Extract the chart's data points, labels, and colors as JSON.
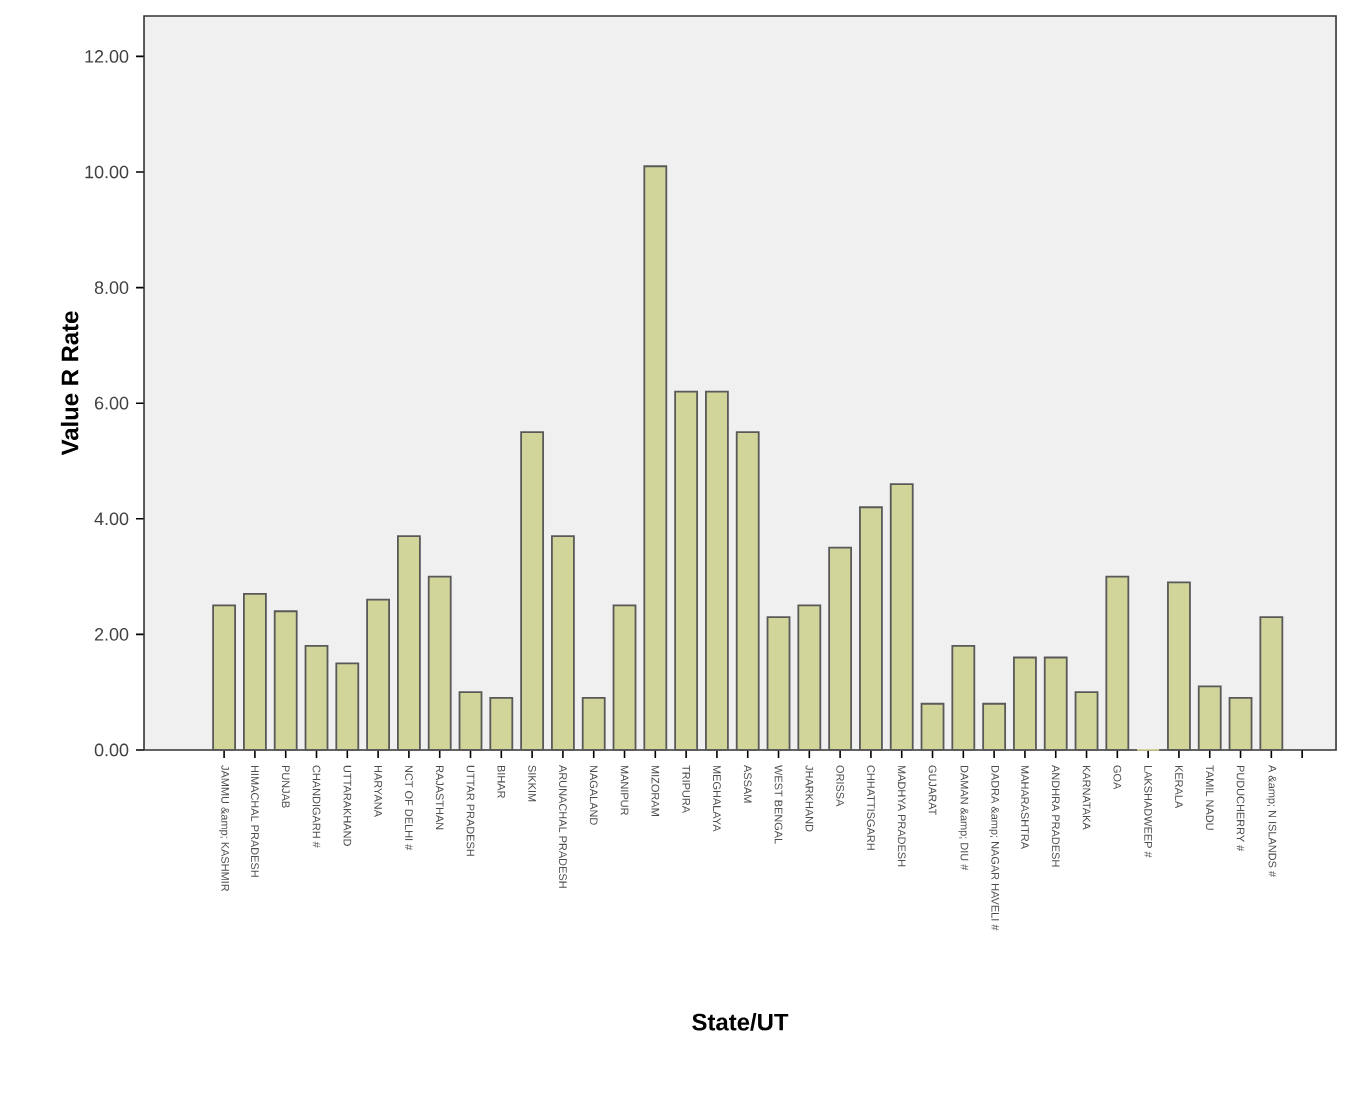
{
  "chart_data": {
    "type": "bar",
    "xlabel": "State/UT",
    "ylabel": "Value R Rate",
    "categories": [
      "JAMMU &amp; KASHMIR",
      "HIMACHAL PRADESH",
      "PUNJAB",
      "CHANDIGARH #",
      "UTTARAKHAND",
      "HARYANA",
      "NCT OF DELHI #",
      "RAJASTHAN",
      "UTTAR PRADESH",
      "BIHAR",
      "SIKKIM",
      "ARUNACHAL PRADESH",
      "NAGALAND",
      "MANIPUR",
      "MIZORAM",
      "TRIPURA",
      "MEGHALAYA",
      "ASSAM",
      "WEST BENGAL",
      "JHARKHAND",
      "ORISSA",
      "CHHATTISGARH",
      "MADHYA PRADESH",
      "GUJARAT",
      "DAMAN &amp; DIU #",
      "DADRA &amp; NAGAR HAVELI #",
      "MAHARASHTRA",
      "ANDHRA PRADESH",
      "KARNATAKA",
      "GOA",
      "LAKSHADWEEP #",
      "KERALA",
      "TAMIL NADU",
      "PUDUCHERRY #",
      "A &amp; N ISLANDS #",
      null
    ],
    "values": [
      2.5,
      2.7,
      2.4,
      1.8,
      1.5,
      2.6,
      3.7,
      3.0,
      1.0,
      0.9,
      5.5,
      3.7,
      0.9,
      2.5,
      10.1,
      6.2,
      6.2,
      5.5,
      2.3,
      2.5,
      3.5,
      4.2,
      4.6,
      0.8,
      1.8,
      0.8,
      1.6,
      1.6,
      1.0,
      3.0,
      0,
      2.9,
      1.1,
      0.9,
      2.3,
      null
    ],
    "color": "#d2d59a",
    "ylim": [
      0,
      12.7
    ],
    "yticks": [
      {
        "value": 0,
        "label": "0.00"
      },
      {
        "value": 2,
        "label": "2.00"
      },
      {
        "value": 4,
        "label": "4.00"
      },
      {
        "value": 6,
        "label": "6.00"
      },
      {
        "value": 8,
        "label": "8.00"
      },
      {
        "value": 10,
        "label": "10.00"
      },
      {
        "value": 12,
        "label": "12.00"
      }
    ],
    "grid": false
  }
}
